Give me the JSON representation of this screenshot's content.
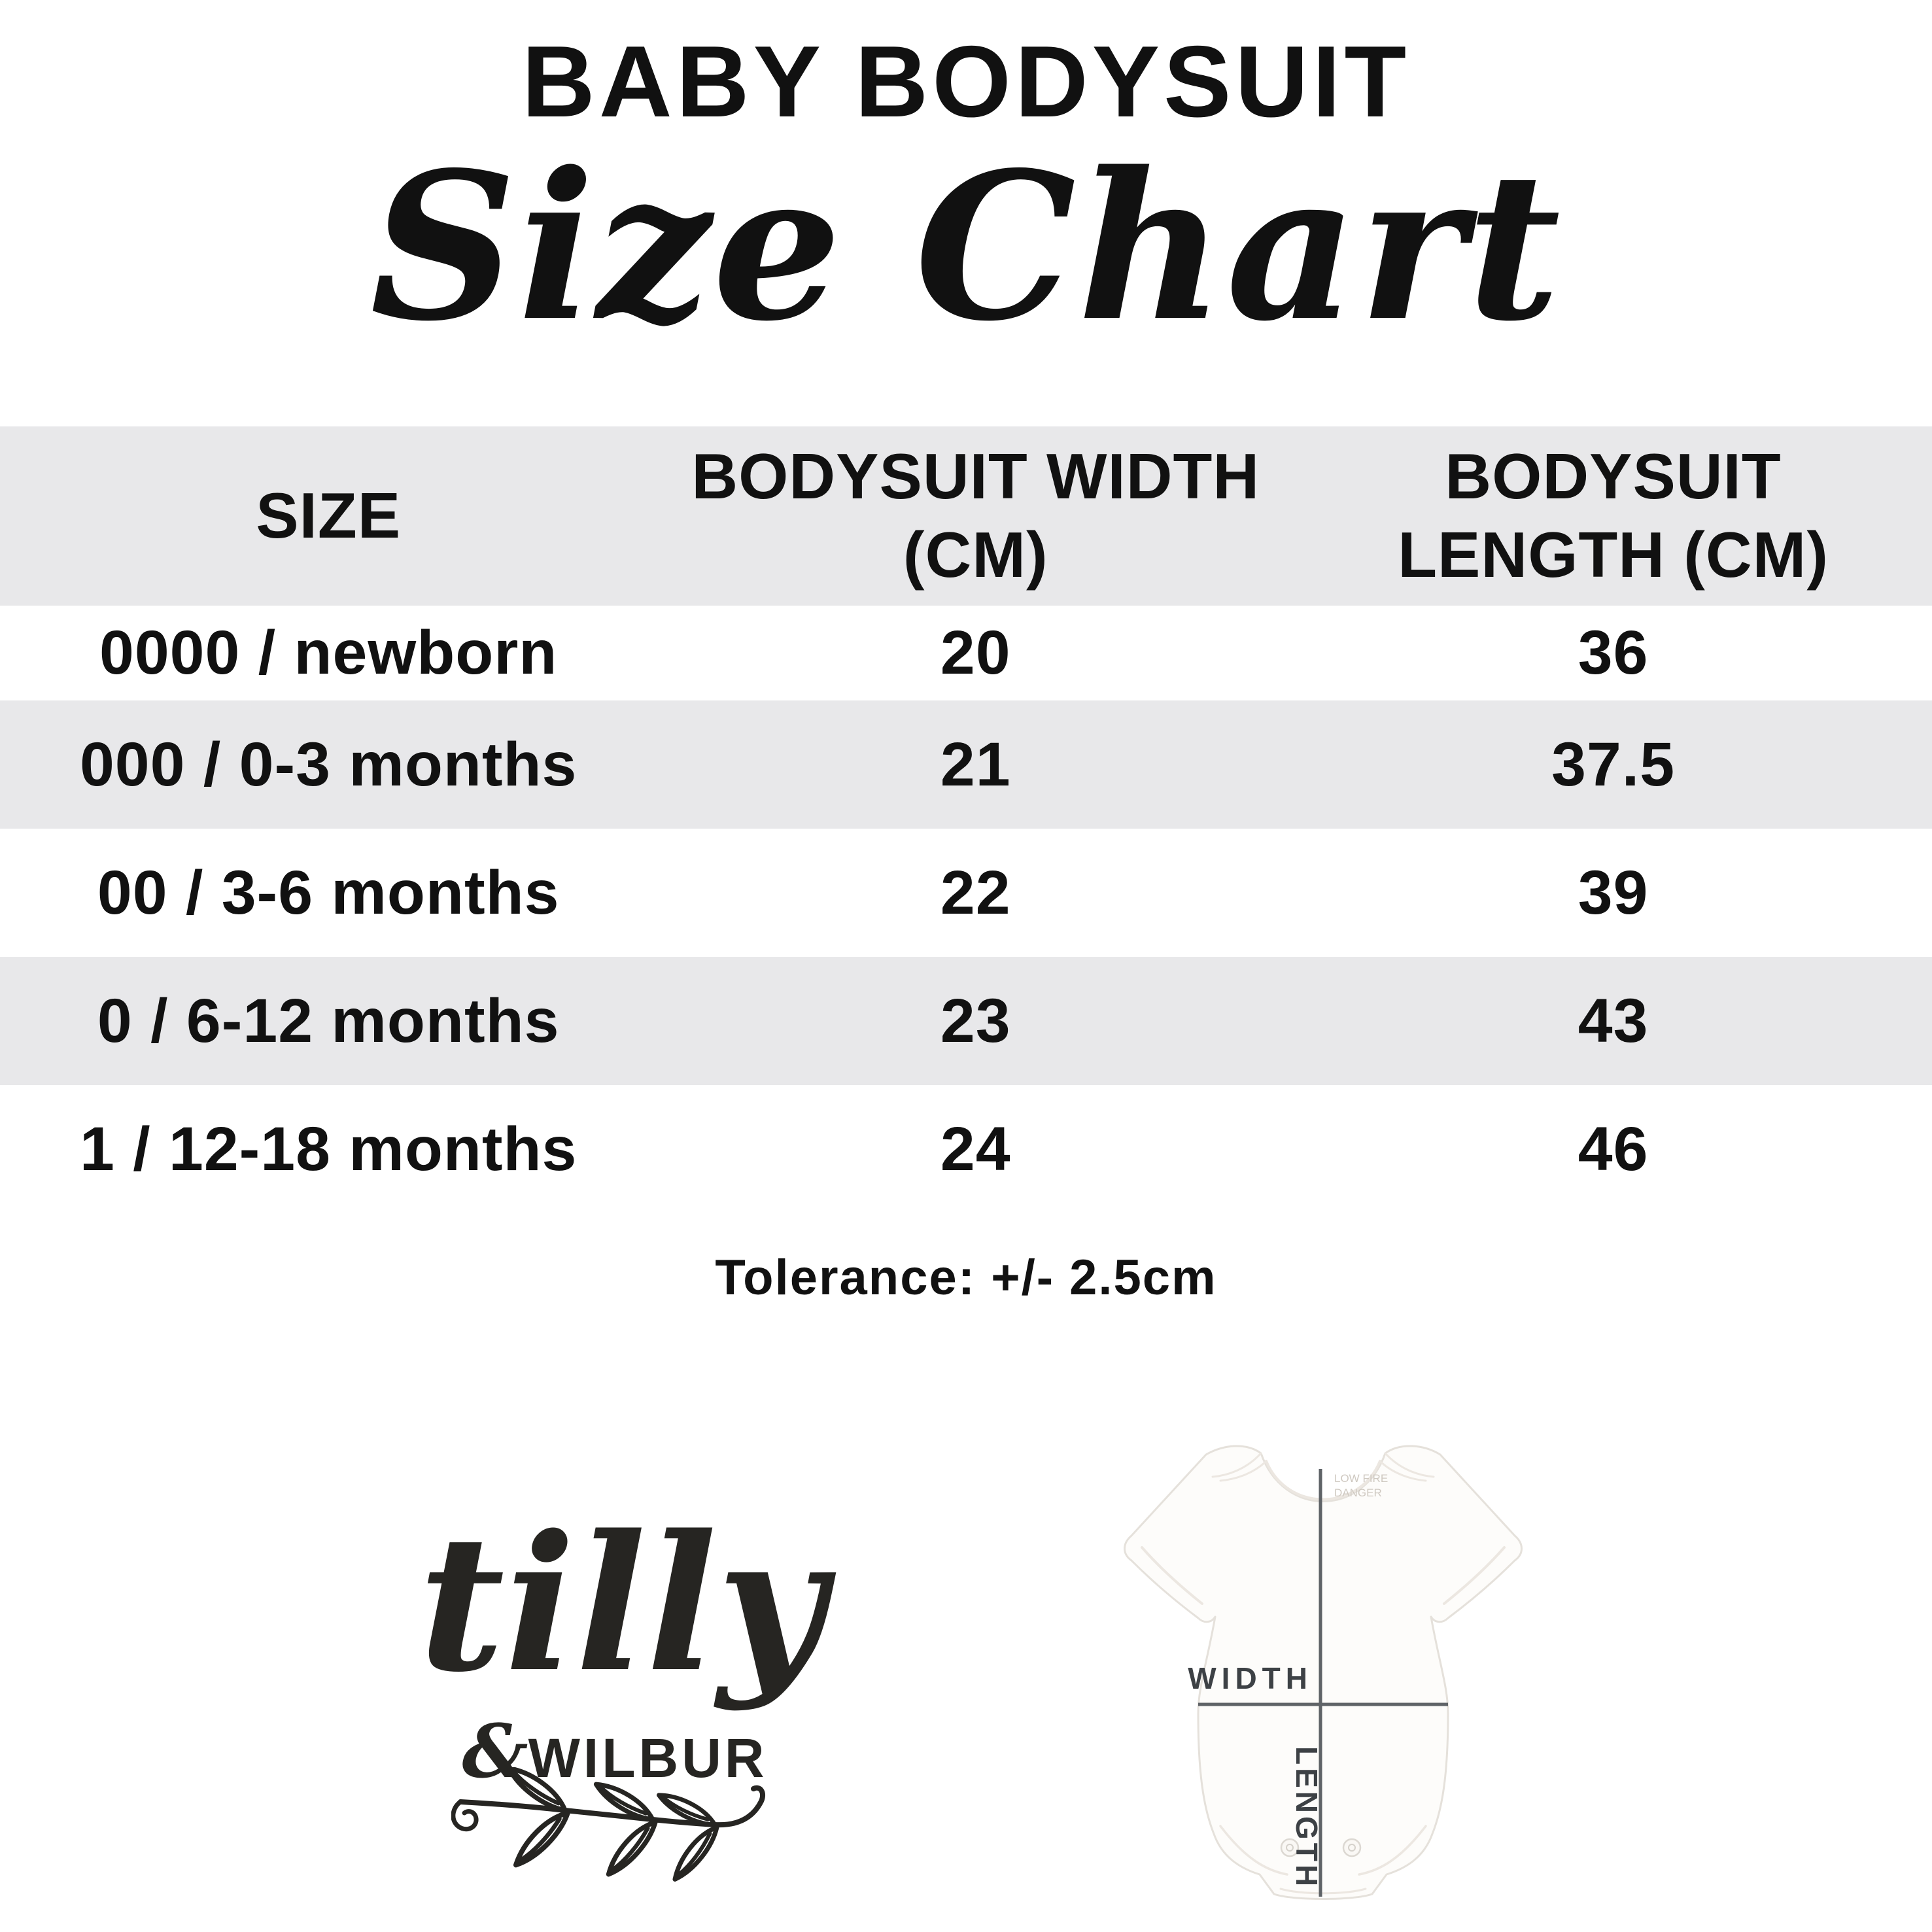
{
  "page": {
    "background_color": "#ffffff",
    "text_color": "#111111",
    "stripe_color": "#e8e8ea"
  },
  "header": {
    "title": "BABY BODYSUIT",
    "subtitle": "Size Chart"
  },
  "table": {
    "columns": [
      "SIZE",
      "BODYSUIT WIDTH (CM)",
      "BODYSUIT LENGTH (CM)"
    ],
    "rows": [
      {
        "size": "0000 / newborn",
        "width_cm": "20",
        "length_cm": "36"
      },
      {
        "size": "000 / 0-3 months",
        "width_cm": "21",
        "length_cm": "37.5"
      },
      {
        "size": "00 / 3-6 months",
        "width_cm": "22",
        "length_cm": "39"
      },
      {
        "size": "0 / 6-12 months",
        "width_cm": "23",
        "length_cm": "43"
      },
      {
        "size": "1 / 12-18 months",
        "width_cm": "24",
        "length_cm": "46"
      }
    ]
  },
  "tolerance_note": "Tolerance: +/- 2.5cm",
  "logo": {
    "name_script": "tilly",
    "ampersand": "&",
    "name_caps": "WILBUR"
  },
  "diagram": {
    "width_label": "WIDTH",
    "length_label": "LENGTH",
    "neck_label_line1": "LOW FIRE",
    "neck_label_line2": "DANGER",
    "line_color": "#5f6367",
    "label_color": "#3d4145"
  },
  "chart_data": {
    "type": "table",
    "title": "BABY BODYSUIT Size Chart",
    "columns": [
      "SIZE",
      "BODYSUIT WIDTH (CM)",
      "BODYSUIT LENGTH (CM)"
    ],
    "categories": [
      "0000 / newborn",
      "000 / 0-3 months",
      "00 / 3-6 months",
      "0 / 6-12 months",
      "1 / 12-18 months"
    ],
    "series": [
      {
        "name": "BODYSUIT WIDTH (CM)",
        "values": [
          20,
          21,
          22,
          23,
          24
        ]
      },
      {
        "name": "BODYSUIT LENGTH (CM)",
        "values": [
          36,
          37.5,
          39,
          43,
          46
        ]
      }
    ],
    "note": "Tolerance: +/- 2.5cm",
    "legend_position": "none",
    "grid": false
  }
}
